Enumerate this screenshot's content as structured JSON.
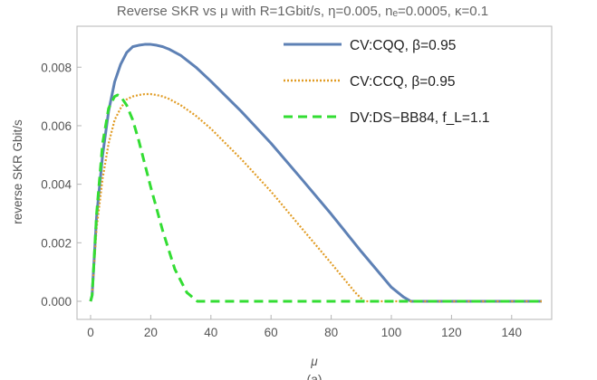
{
  "chart_data": {
    "type": "line",
    "title": "Reverse SKR vs μ with R=1Gbit/s, η=0.005, nₑ=0.0005, κ=0.1",
    "xlabel": "μ",
    "ylabel": "reverse SKR Gbit/s",
    "caption": "(a)",
    "xlim": [
      0,
      150
    ],
    "ylim": [
      0,
      0.0094
    ],
    "x_ticks": [
      0,
      20,
      40,
      60,
      80,
      100,
      120,
      140
    ],
    "y_ticks": [
      0.0,
      0.002,
      0.004,
      0.006,
      0.008
    ],
    "y_tick_labels": [
      "0.000",
      "0.002",
      "0.004",
      "0.006",
      "0.008"
    ],
    "grid": false,
    "legend_position": "top-right",
    "series": [
      {
        "name": "CV:CQQ, β=0.95",
        "color": "#5e81b5",
        "style": "solid",
        "x": [
          0,
          0.5,
          2,
          4,
          6,
          8,
          10,
          12,
          14,
          16,
          18,
          20,
          22,
          24,
          26,
          30,
          35,
          40,
          50,
          60,
          70,
          80,
          90,
          100,
          104,
          106.5,
          110,
          120,
          130,
          140,
          150
        ],
        "y": [
          0,
          0.0002,
          0.0029,
          0.005,
          0.0065,
          0.0075,
          0.0081,
          0.0085,
          0.0087,
          0.00875,
          0.00878,
          0.00878,
          0.00875,
          0.0087,
          0.00862,
          0.0084,
          0.008,
          0.00752,
          0.0065,
          0.0054,
          0.0042,
          0.00298,
          0.0017,
          0.00048,
          0.00015,
          0,
          0,
          0,
          0,
          0,
          0
        ]
      },
      {
        "name": "CV:CCQ, β=0.95",
        "color": "#e19c24",
        "style": "dotted",
        "x": [
          0,
          0.5,
          2,
          4,
          6,
          8,
          10,
          12,
          14,
          16,
          18,
          20,
          22,
          24,
          26,
          30,
          35,
          40,
          50,
          60,
          70,
          80,
          88,
          91,
          95,
          110,
          130,
          150
        ],
        "y": [
          0,
          0.0002,
          0.0025,
          0.0042,
          0.0054,
          0.0062,
          0.0066,
          0.0069,
          0.007,
          0.00705,
          0.00708,
          0.00708,
          0.00705,
          0.007,
          0.00692,
          0.0067,
          0.00634,
          0.0059,
          0.00487,
          0.00375,
          0.00252,
          0.0013,
          0.0003,
          0,
          0,
          0,
          0,
          0
        ]
      },
      {
        "name": "DV:DS−BB84, f_L=1.1",
        "color": "#33dd33",
        "style": "dashed",
        "x": [
          0,
          0.5,
          2,
          4,
          6,
          8,
          9,
          10,
          12,
          14,
          16,
          18,
          20,
          24,
          28,
          32,
          35.5,
          40,
          60,
          80,
          100,
          120,
          150
        ],
        "y": [
          0,
          0.0002,
          0.003,
          0.0054,
          0.0066,
          0.007,
          0.00705,
          0.007,
          0.0067,
          0.0062,
          0.0055,
          0.0047,
          0.0039,
          0.0024,
          0.0011,
          0.0003,
          0,
          0,
          0,
          0,
          0,
          0,
          0
        ]
      }
    ]
  }
}
